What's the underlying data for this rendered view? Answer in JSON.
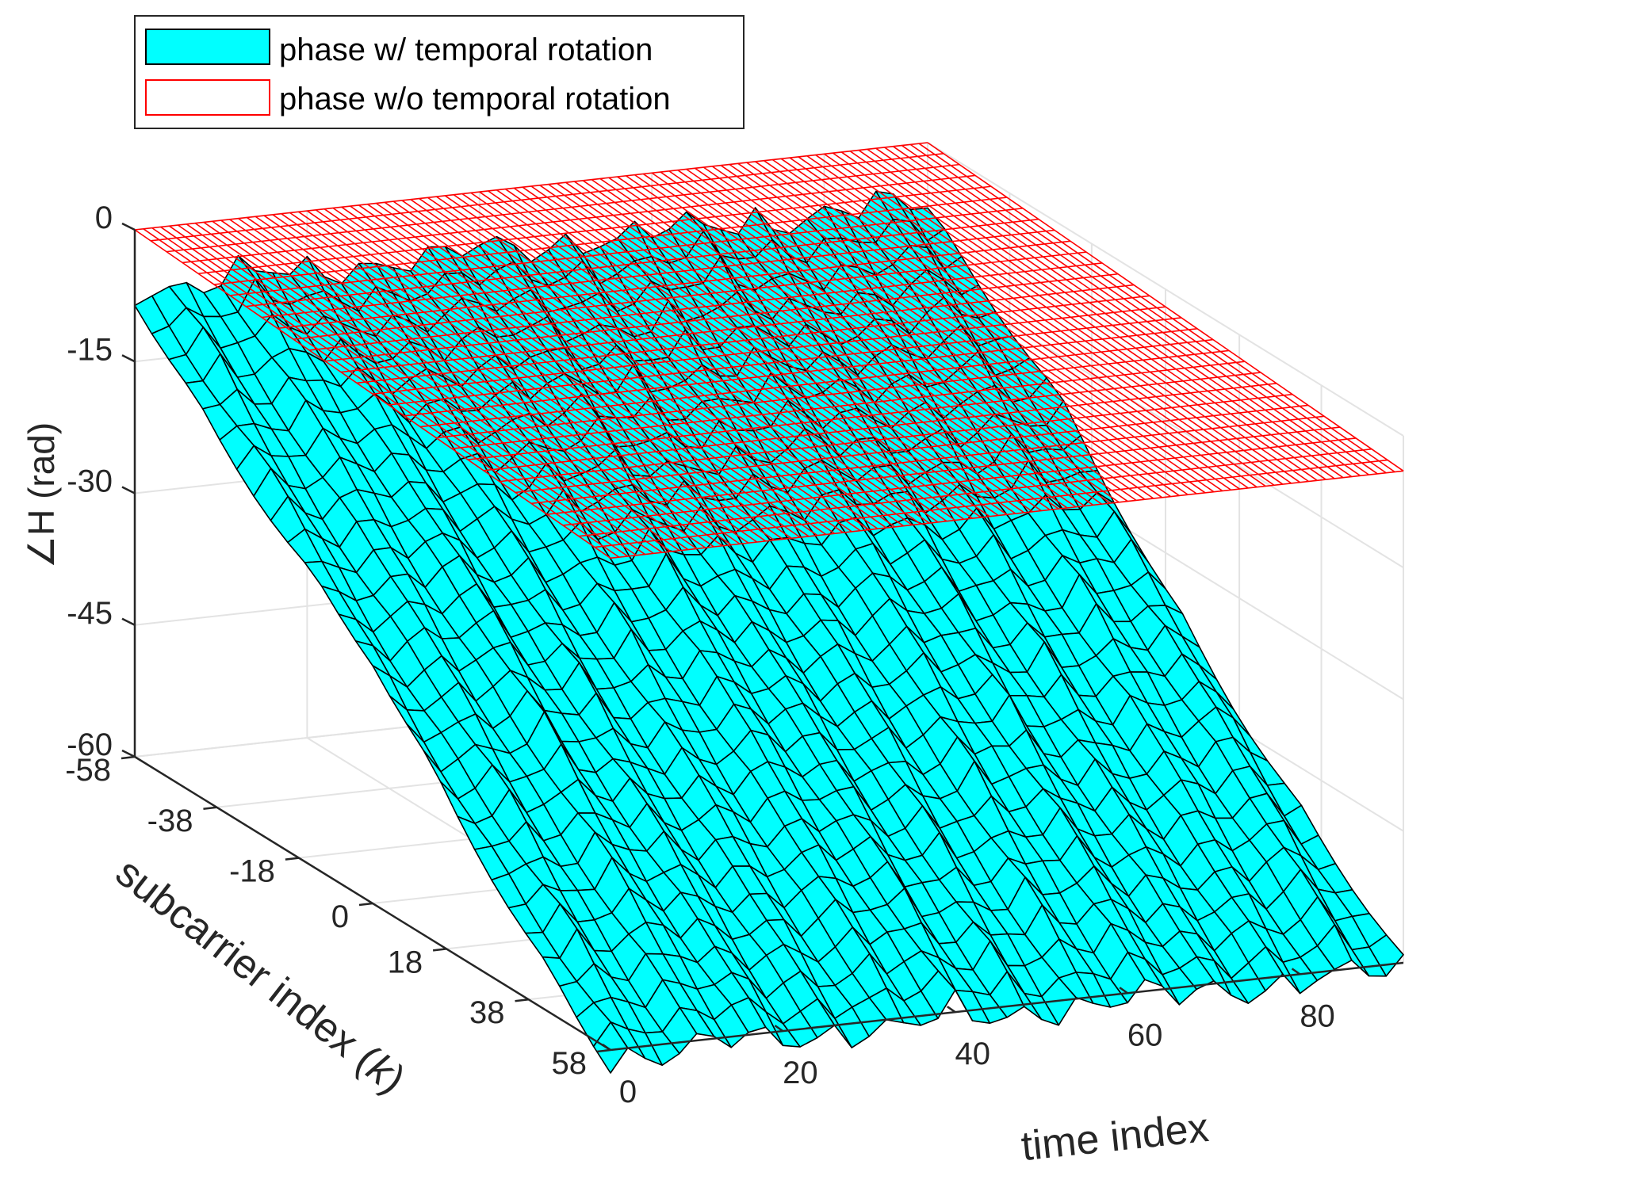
{
  "chart_data": {
    "type": "surface3d",
    "title": "",
    "zlabel": "∠H (rad)",
    "xlabel": "time index",
    "ylabel_prefix": "subcarrier index (",
    "ylabel_var": "k",
    "ylabel_suffix": ")",
    "z_ticks": [
      "0",
      "-15",
      "-30",
      "-45",
      "-60"
    ],
    "z_tick_values": [
      0,
      -15,
      -30,
      -45,
      -60
    ],
    "zlim": [
      -60,
      0
    ],
    "subcarrier_ticks": [
      "-58",
      "-38",
      "-18",
      "0",
      "18",
      "38",
      "58"
    ],
    "subcarrier_tick_values": [
      -58,
      -38,
      -18,
      0,
      18,
      38,
      58
    ],
    "subcarrier_range": [
      -58,
      58
    ],
    "time_ticks": [
      "0",
      "20",
      "40",
      "60",
      "80"
    ],
    "time_tick_values": [
      0,
      20,
      40,
      60,
      80
    ],
    "time_range": [
      0,
      92
    ],
    "grid": true,
    "legend_position": "top-left",
    "series": [
      {
        "name": "phase w/ temporal rotation",
        "style": "filled-surface",
        "face_color": "#00FFFF",
        "edge_color": "#000000",
        "z_at_k_min": -3,
        "z_at_k_max": -57,
        "ripple_amplitude": 3
      },
      {
        "name": "phase w/o temporal rotation",
        "style": "mesh",
        "edge_color": "#FF0000",
        "z_at_k_min": 0,
        "z_at_k_max": -4
      }
    ]
  }
}
